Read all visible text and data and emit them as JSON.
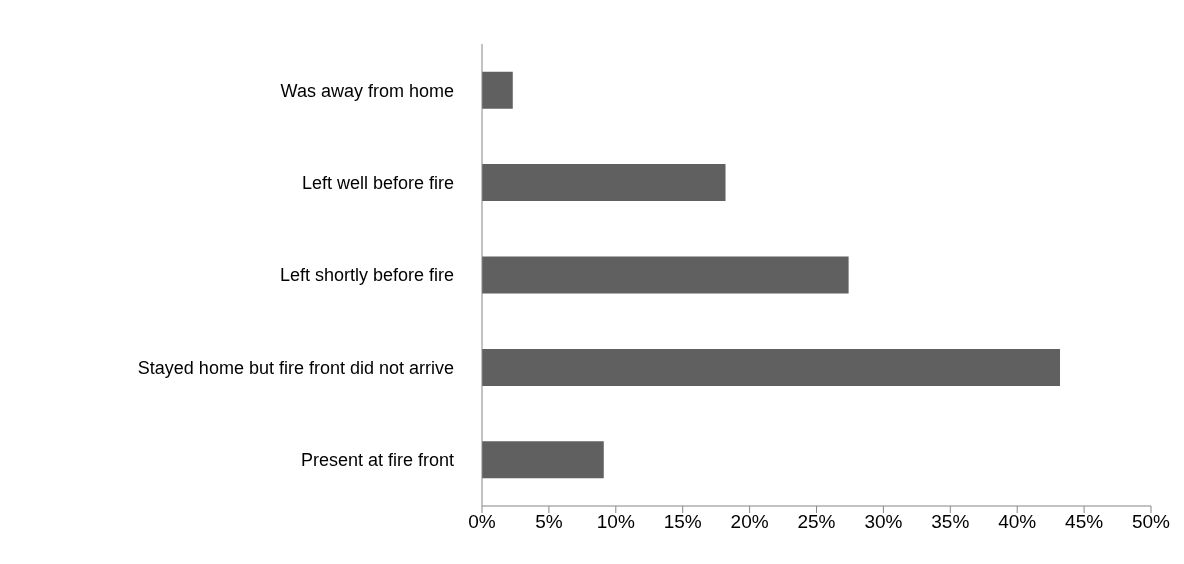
{
  "chart_data": {
    "type": "bar",
    "orientation": "horizontal",
    "categories": [
      "Was away from home",
      "Left well before fire",
      "Left shortly before fire",
      "Stayed home but fire front did not arrive",
      "Present at fire front"
    ],
    "values": [
      2.3,
      18.2,
      27.4,
      43.2,
      9.1
    ],
    "color": "#606060",
    "xlim": [
      0,
      50
    ],
    "xticks": [
      {
        "value": 0,
        "label": "0%"
      },
      {
        "value": 5,
        "label": "5%"
      },
      {
        "value": 10,
        "label": "10%"
      },
      {
        "value": 15,
        "label": "15%"
      },
      {
        "value": 20,
        "label": "20%"
      },
      {
        "value": 25,
        "label": "25%"
      },
      {
        "value": 30,
        "label": "30%"
      },
      {
        "value": 35,
        "label": "35%"
      },
      {
        "value": 40,
        "label": "40%"
      },
      {
        "value": 45,
        "label": "45%"
      },
      {
        "value": 50,
        "label": "50%"
      }
    ],
    "grid": false
  }
}
